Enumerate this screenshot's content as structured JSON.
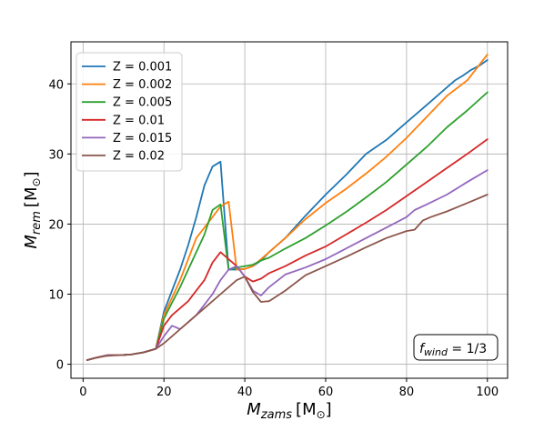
{
  "chart_data": {
    "type": "line",
    "xlabel": {
      "main": "M",
      "sub": "zams",
      "unit": "[M",
      "unit_sub": "⊙",
      "close": "]"
    },
    "ylabel": {
      "main": "M",
      "sub": "rem",
      "unit": "[M",
      "unit_sub": "⊙",
      "close": "]"
    },
    "xlim": [
      -3,
      105
    ],
    "ylim": [
      -2,
      46
    ],
    "xticks": [
      0,
      20,
      40,
      60,
      80,
      100
    ],
    "yticks": [
      0,
      10,
      20,
      30,
      40
    ],
    "grid": true,
    "legend_position": "top-left",
    "annotation": {
      "main": "f",
      "sub": "wind",
      "rest": " = 1/3"
    },
    "series": [
      {
        "name": "Z = 0.001",
        "color": "#1f77b4",
        "x": [
          1,
          3,
          6,
          9,
          12,
          15,
          18,
          20,
          22,
          24,
          26,
          28,
          30,
          32,
          34,
          36,
          38,
          40,
          42,
          44,
          46,
          50,
          55,
          60,
          65,
          70,
          75,
          80,
          85,
          90,
          92,
          94,
          96,
          98,
          100
        ],
        "y": [
          0.6,
          0.9,
          1.3,
          1.3,
          1.4,
          1.7,
          2.2,
          7.5,
          10.5,
          13.5,
          17,
          21,
          25.5,
          28.2,
          28.9,
          13.5,
          13.5,
          13.6,
          14.0,
          14.8,
          16.0,
          18.0,
          21.2,
          24.2,
          27.0,
          30.0,
          32.0,
          34.5,
          37.0,
          39.5,
          40.5,
          41.2,
          42.0,
          42.6,
          43.4
        ]
      },
      {
        "name": "Z = 0.002",
        "color": "#ff7f0e",
        "x": [
          1,
          3,
          6,
          9,
          12,
          15,
          18,
          20,
          22,
          24,
          26,
          28,
          30,
          32,
          34,
          36,
          38,
          40,
          42,
          44,
          46,
          50,
          55,
          60,
          65,
          70,
          75,
          80,
          85,
          90,
          95,
          100
        ],
        "y": [
          0.6,
          0.9,
          1.3,
          1.3,
          1.4,
          1.7,
          2.2,
          7.0,
          9.5,
          12.0,
          15.0,
          18.0,
          19.5,
          21.0,
          22.5,
          23.2,
          13.5,
          13.6,
          14.0,
          15.0,
          16.0,
          18.0,
          20.7,
          23.0,
          25.0,
          27.2,
          29.6,
          32.3,
          35.3,
          38.3,
          40.5,
          44.2
        ]
      },
      {
        "name": "Z = 0.005",
        "color": "#2ca02c",
        "x": [
          1,
          3,
          6,
          9,
          12,
          15,
          18,
          20,
          22,
          24,
          26,
          28,
          30,
          32,
          34,
          36,
          38,
          40,
          42,
          44,
          46,
          50,
          55,
          60,
          65,
          70,
          75,
          80,
          85,
          90,
          95,
          100
        ],
        "y": [
          0.6,
          0.9,
          1.3,
          1.3,
          1.4,
          1.7,
          2.2,
          6.5,
          8.8,
          11.0,
          13.5,
          16.0,
          18.5,
          22.0,
          22.8,
          13.5,
          13.8,
          14.0,
          14.2,
          14.8,
          15.2,
          16.5,
          18.0,
          19.8,
          21.7,
          23.8,
          26.0,
          28.5,
          31.0,
          33.8,
          36.2,
          38.8
        ]
      },
      {
        "name": "Z = 0.01",
        "color": "#d62728",
        "x": [
          1,
          3,
          6,
          9,
          12,
          15,
          18,
          20,
          22,
          24,
          26,
          28,
          30,
          32,
          34,
          36,
          38,
          40,
          42,
          44,
          46,
          50,
          55,
          60,
          65,
          70,
          75,
          80,
          85,
          90,
          95,
          100
        ],
        "y": [
          0.6,
          0.9,
          1.3,
          1.3,
          1.4,
          1.7,
          2.2,
          5.5,
          7.0,
          8.0,
          9.0,
          10.5,
          12.0,
          14.5,
          16.0,
          15.0,
          14.0,
          12.5,
          11.8,
          12.2,
          13.0,
          14.0,
          15.5,
          16.8,
          18.5,
          20.2,
          22.0,
          24.0,
          26.0,
          28.0,
          30.0,
          32.1
        ]
      },
      {
        "name": "Z = 0.015",
        "color": "#9467bd",
        "x": [
          1,
          3,
          6,
          9,
          12,
          15,
          18,
          20,
          22,
          24,
          26,
          28,
          30,
          32,
          34,
          36,
          38,
          40,
          42,
          44,
          46,
          50,
          55,
          60,
          65,
          70,
          75,
          80,
          82,
          85,
          90,
          95,
          100
        ],
        "y": [
          0.6,
          0.9,
          1.3,
          1.3,
          1.4,
          1.7,
          2.2,
          4.0,
          5.5,
          5.0,
          6.0,
          7.0,
          8.5,
          10.0,
          12.0,
          13.5,
          14.0,
          12.5,
          10.5,
          9.8,
          11.0,
          12.8,
          13.8,
          15.0,
          16.5,
          18.0,
          19.5,
          21.0,
          22.0,
          22.8,
          24.2,
          26.0,
          27.7
        ]
      },
      {
        "name": "Z = 0.02",
        "color": "#8c564b",
        "x": [
          1,
          3,
          6,
          9,
          12,
          15,
          18,
          20,
          22,
          24,
          26,
          28,
          30,
          32,
          34,
          36,
          38,
          40,
          42,
          44,
          46,
          50,
          55,
          60,
          65,
          70,
          75,
          80,
          82,
          84,
          86,
          90,
          95,
          100
        ],
        "y": [
          0.6,
          0.9,
          1.2,
          1.3,
          1.4,
          1.7,
          2.2,
          3.0,
          4.0,
          5.0,
          6.0,
          7.0,
          8.0,
          9.0,
          10.0,
          11.0,
          12.0,
          12.5,
          10.3,
          8.9,
          9.0,
          10.5,
          12.7,
          14.0,
          15.3,
          16.7,
          18.0,
          19.0,
          19.2,
          20.5,
          21.0,
          21.8,
          23.0,
          24.2
        ]
      }
    ]
  }
}
